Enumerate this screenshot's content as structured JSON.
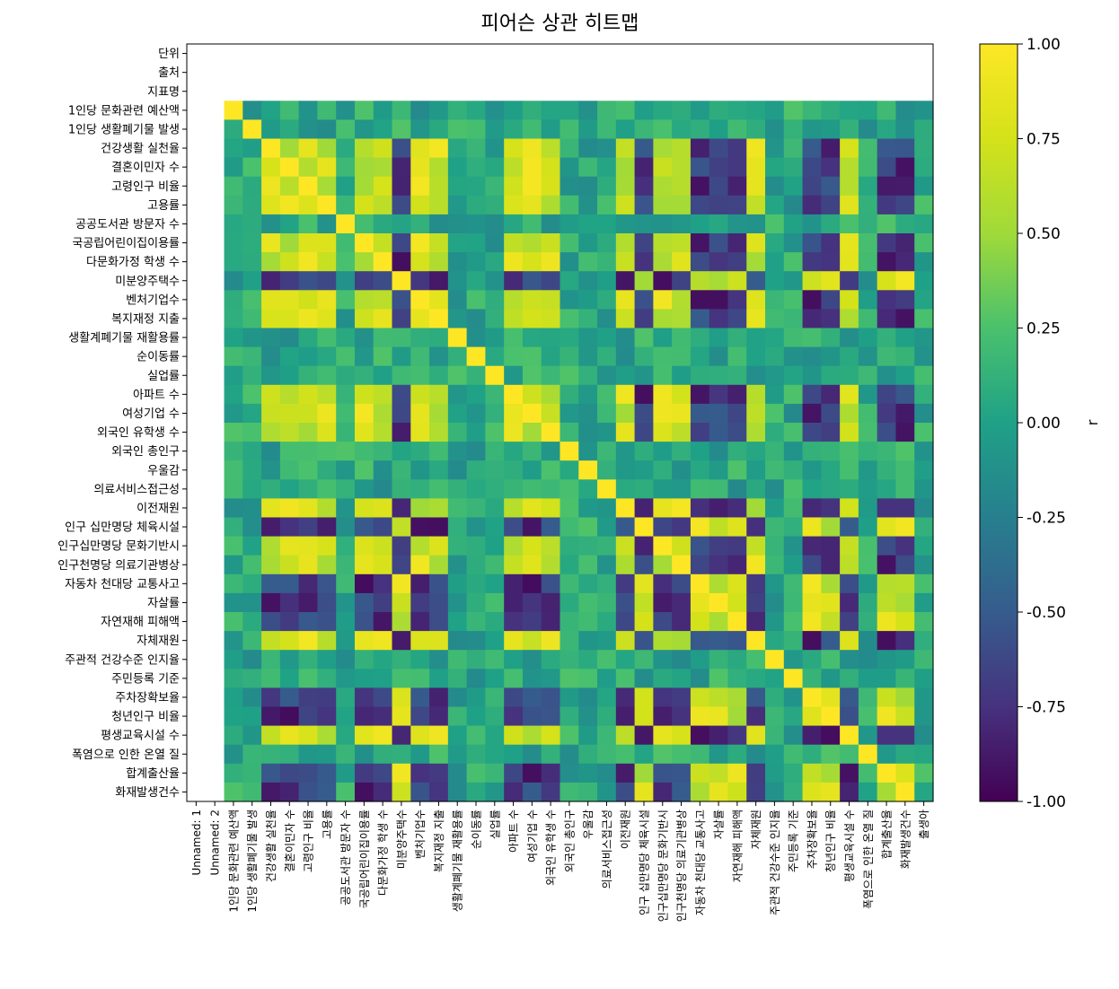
{
  "chart_data": {
    "type": "heatmap",
    "title": "피어슨 상관 히트맵",
    "rows": [
      "단위",
      "출처",
      "지표명",
      "1인당 문화관련 예산액",
      "1인당 생활폐기물 발생",
      "건강생활 실천율",
      "결혼이민자 수",
      "고령인구 비율",
      "고용률",
      "공공도서관 방문자 수",
      "국공립어린이집이용률",
      "다문화가정 학생 수",
      "미분양주택수",
      "벤처기업수",
      "복지재정 지출",
      "생활계폐기물 재활용률",
      "순이동률",
      "실업률",
      "아파트 수",
      "여성기업 수",
      "외국인 유학생 수",
      "외국인 총인구",
      "우울감",
      "의료서비스접근성",
      "이전재원",
      "인구 십만명당 체육시설",
      "인구십만명당 문화기반시",
      "인구천명당 의료기관병상",
      "자동차 천대당 교통사고",
      "자살률",
      "자연재해 피해액",
      "자체재원",
      "주관적 건강수준 인지율",
      "주민등록 기준",
      "주차장확보율",
      "청년인구 비율",
      "평생교육시설 수",
      "폭염으로 인한 온열 질",
      "합계출산율",
      "화재발생건수"
    ],
    "columns": [
      "Unnamed: 1",
      "Unnamed: 2",
      "1인당 문화관련 예산액",
      "1인당 생활폐기물 발생",
      "건강생활 실천율",
      "결혼이민자 수",
      "고령인구 비율",
      "고용률",
      "공공도서관 방문자 수",
      "국공립어린이집이용률",
      "다문화가정 학생 수",
      "미분양주택수",
      "벤처기업수",
      "복지재정 지출",
      "생활계폐기물 재활용률",
      "순이동률",
      "실업률",
      "아파트 수",
      "여성기업 수",
      "외국인 유학생 수",
      "외국인 총인구",
      "우울감",
      "의료서비스접근성",
      "이전재원",
      "인구 십만명당 체육시설",
      "인구십만명당 문화기반시",
      "인구천명당 의료기관병상",
      "자동차 천대당 교통사고",
      "자살률",
      "자연재해 피해액",
      "자체재원",
      "주관적 건강수준 인지율",
      "주민등록 기준",
      "주차장확보율",
      "청년인구 비율",
      "평생교육시설 수",
      "폭염으로 인한 온열 질",
      "합계출산율",
      "화재발생건수",
      "출생아"
    ],
    "value_scale": {
      "min": -1.0,
      "max": 1.0,
      "colormap": "viridis"
    },
    "colorbar": {
      "label": "r",
      "ticks": [
        "1.00",
        "0.75",
        "0.50",
        "0.25",
        "0.00",
        "-0.25",
        "-0.50",
        "-0.75",
        "-1.00"
      ]
    },
    "empty_rows": 3,
    "empty_cols": 2,
    "blocks": {
      "pos": [
        "건강생활 실천율",
        "결혼이민자 수",
        "고령인구 비율",
        "고용률",
        "국공립어린이집이용률",
        "다문화가정 학생 수",
        "벤처기업수",
        "복지재정 지출",
        "아파트 수",
        "여성기업 수",
        "외국인 유학생 수",
        "이전재원",
        "인구십만명당 문화기반시",
        "인구천명당 의료기관병상",
        "자체재원",
        "평생교육시설 수"
      ],
      "neg": [
        "미분양주택수",
        "자동차 천대당 교통사고",
        "자살률",
        "주차장확보율",
        "청년인구 비율",
        "합계출산율",
        "화재발생건수",
        "인구 십만명당 체육시설",
        "자연재해 피해액"
      ]
    }
  }
}
